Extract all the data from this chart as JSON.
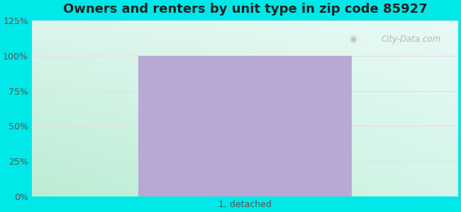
{
  "title": "Owners and renters by unit type in zip code 85927",
  "categories": [
    "1, detached"
  ],
  "values": [
    100
  ],
  "bar_color": "#b9a8d4",
  "bar_width": 0.5,
  "ylim": [
    0,
    125
  ],
  "yticks": [
    0,
    25,
    50,
    75,
    100,
    125
  ],
  "yticklabels": [
    "0%",
    "25%",
    "50%",
    "75%",
    "100%",
    "125%"
  ],
  "outer_bg": "#00e8e8",
  "bg_top_left": "#e0f8f0",
  "bg_top_right": "#e0f8f4",
  "bg_bottom_left": "#c8f0d8",
  "bg_bottom_right": "#d8f4ec",
  "title_fontsize": 13,
  "tick_fontsize": 9,
  "title_color": "#222222",
  "watermark": "City-Data.com",
  "grid_color": "#e0e8e0",
  "figsize": [
    6.5,
    3.0
  ],
  "dpi": 100
}
